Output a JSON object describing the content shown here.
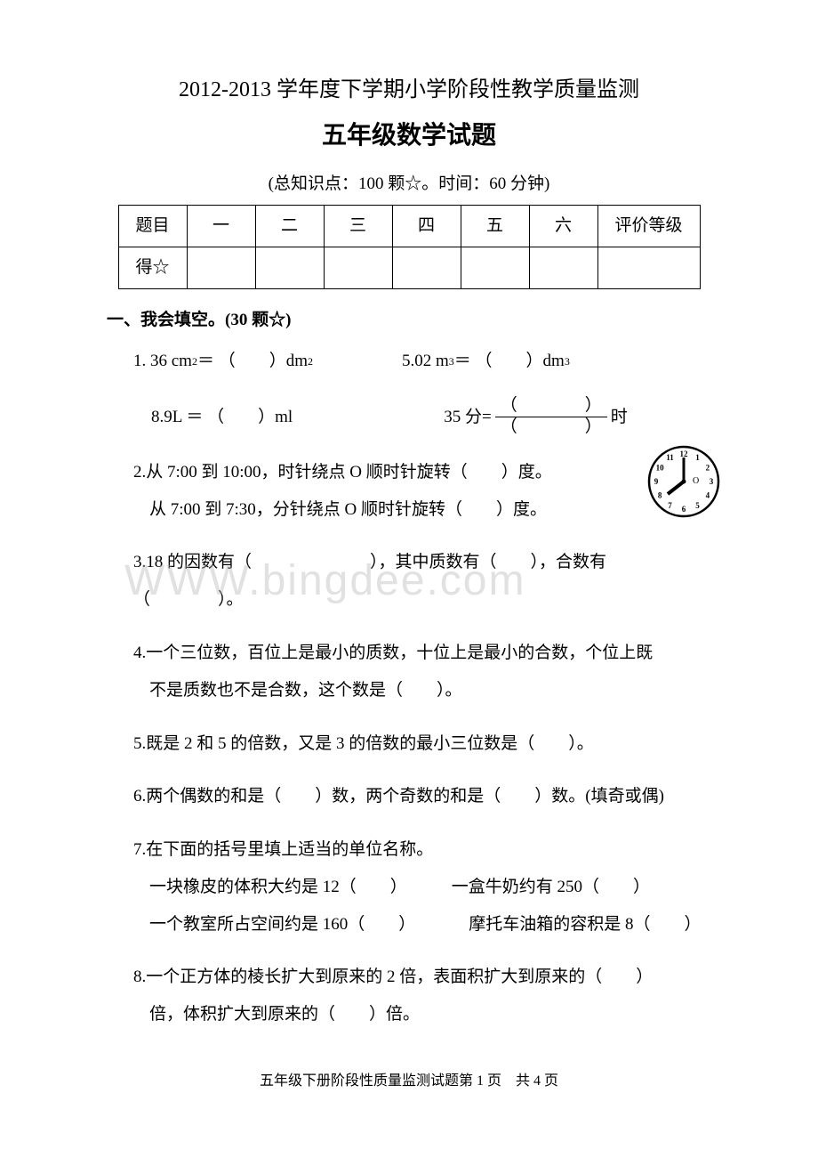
{
  "title1": "2012-2013 学年度下学期小学阶段性教学质量监测",
  "title2": "五年级数学试题",
  "subtitle": "(总知识点：100 颗☆。时间：60 分钟)",
  "table": {
    "header": [
      "题目",
      "一",
      "二",
      "三",
      "四",
      "五",
      "六",
      "评价等级"
    ],
    "row2_label": "得☆"
  },
  "section1": "一、我会填空。(30 颗☆)",
  "q1": {
    "num": "1.",
    "a": "36 cm",
    "a2": " ＝ （　　）dm",
    "b": "5.02 m",
    "b2": " ＝ （　　）dm",
    "c": "8.9L ＝ （　　）ml",
    "d_pre": "35 分=",
    "d_num": "（　　　　）",
    "d_den": "（　　　　）",
    "d_post": " 时"
  },
  "q2": {
    "num": "2.",
    "line1": "从 7:00 到 10:00，时针绕点 O 顺时针旋转（　　）度。",
    "line2": "从 7:00 到 7:30，分针绕点 O 顺时针旋转（　　）度。"
  },
  "q3": {
    "num": "3.",
    "text1": "18 的因数有（　　　　　　　），其中质数有（　　），合数有",
    "text2": "（　　　　）。"
  },
  "q4": {
    "num": "4.",
    "line1": "一个三位数，百位上是最小的质数，十位上是最小的合数，个位上既",
    "line2": "不是质数也不是合数，这个数是（　　）。"
  },
  "q5": {
    "num": "5.",
    "text": "既是 2 和 5 的倍数，又是 3 的倍数的最小三位数是（　　）。"
  },
  "q6": {
    "num": "6.",
    "text": "两个偶数的和是（　　）数，两个奇数的和是（　　）数。(填奇或偶)"
  },
  "q7": {
    "num": "7.",
    "line1": "在下面的括号里填上适当的单位名称。",
    "line2a": "一块橡皮的体积大约是 12（　　）",
    "line2b": "一盒牛奶约有 250（　　）",
    "line3a": "一个教室所占空间约是 160（　　）",
    "line3b": "摩托车油箱的容积是 8（　　）"
  },
  "q8": {
    "num": "8.",
    "line1": "一个正方体的棱长扩大到原来的 2 倍，表面积扩大到原来的（　　）",
    "line2": "倍，体积扩大到原来的（　　）倍。"
  },
  "watermark": "WWW.bingdee.com",
  "footer": "五年级下册阶段性质量监测试题第 1 页　共 4 页",
  "clock": {
    "numbers": [
      "12",
      "1",
      "2",
      "3",
      "4",
      "5",
      "6",
      "7",
      "8",
      "9",
      "10",
      "11"
    ],
    "center_label": "O"
  }
}
